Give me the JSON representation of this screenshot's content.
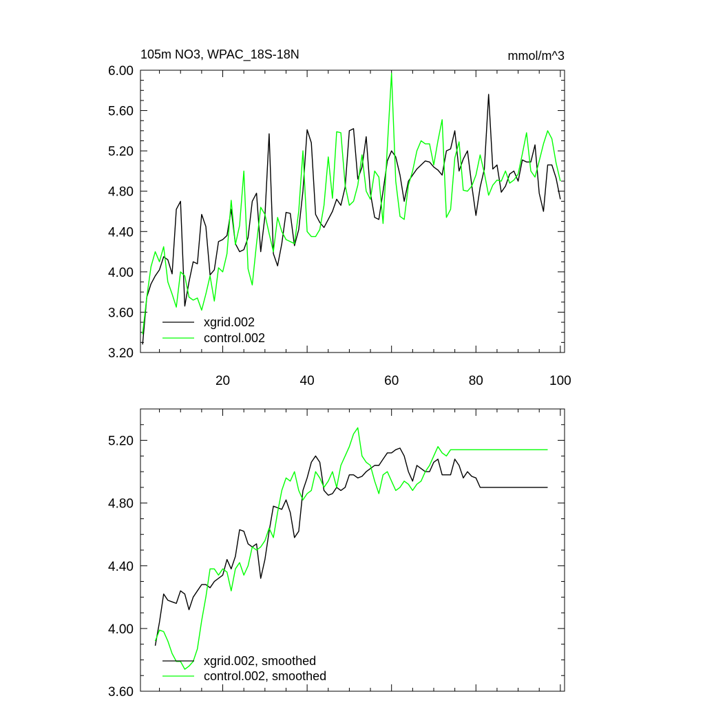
{
  "chart_data": [
    {
      "type": "line",
      "title": "105m NO3, WPAC_18S-18N",
      "units": "mmol/m^3",
      "xlabel": "",
      "ylabel": "",
      "xlim": [
        0.5,
        101
      ],
      "ylim": [
        3.2,
        6.0
      ],
      "xticks": [
        20,
        40,
        60,
        80,
        100
      ],
      "xtick_labels": [
        "20",
        "40",
        "60",
        "80",
        "100"
      ],
      "yticks": [
        3.2,
        3.6,
        4.0,
        4.4,
        4.8,
        5.2,
        5.6,
        6.0
      ],
      "ytick_labels": [
        "3.20",
        "3.60",
        "4.00",
        "4.40",
        "4.80",
        "5.20",
        "5.60",
        "6.00"
      ],
      "legend_position": "bottom-left",
      "series": [
        {
          "name": "xgrid.002",
          "color": "#000000",
          "x": [
            1,
            2,
            3,
            4,
            5,
            6,
            7,
            8,
            9,
            10,
            11,
            12,
            13,
            14,
            15,
            16,
            17,
            18,
            19,
            20,
            21,
            22,
            23,
            24,
            25,
            26,
            27,
            28,
            29,
            30,
            31,
            32,
            33,
            34,
            35,
            36,
            37,
            38,
            39,
            40,
            41,
            42,
            43,
            44,
            45,
            46,
            47,
            48,
            49,
            50,
            51,
            52,
            53,
            54,
            55,
            56,
            57,
            58,
            59,
            60,
            61,
            62,
            63,
            64,
            65,
            66,
            67,
            68,
            69,
            70,
            71,
            72,
            73,
            74,
            75,
            76,
            77,
            78,
            79,
            80,
            81,
            82,
            83,
            84,
            85,
            86,
            87,
            88,
            89,
            90,
            91,
            92,
            93,
            94,
            95,
            96,
            97,
            98,
            99,
            100
          ],
          "values": [
            3.28,
            3.75,
            3.88,
            3.96,
            4.02,
            4.15,
            4.12,
            3.98,
            4.62,
            4.7,
            3.66,
            3.9,
            4.1,
            4.08,
            4.57,
            4.45,
            3.97,
            4.02,
            4.3,
            4.32,
            4.36,
            4.62,
            4.28,
            4.2,
            4.22,
            4.34,
            4.7,
            4.78,
            4.2,
            4.55,
            5.37,
            4.18,
            4.06,
            4.28,
            4.59,
            4.58,
            4.26,
            4.42,
            4.8,
            5.41,
            5.28,
            4.57,
            4.49,
            4.44,
            4.52,
            4.6,
            4.72,
            4.66,
            4.84,
            5.4,
            5.42,
            4.92,
            5.04,
            5.34,
            4.78,
            4.54,
            4.52,
            4.8,
            5.1,
            5.2,
            5.14,
            4.96,
            4.7,
            4.9,
            4.96,
            5.02,
            5.06,
            5.1,
            5.09,
            5.04,
            5.01,
            4.96,
            5.2,
            5.22,
            5.4,
            5.0,
            5.12,
            5.2,
            4.86,
            4.56,
            4.84,
            5.02,
            5.76,
            5.02,
            5.06,
            4.79,
            4.85,
            4.97,
            5.0,
            4.9,
            5.11,
            5.09,
            5.09,
            5.26,
            4.78,
            4.6,
            5.06,
            5.06,
            4.93,
            4.72
          ]
        },
        {
          "name": "control.002",
          "color": "#00ff00",
          "x": [
            1,
            2,
            3,
            4,
            5,
            6,
            7,
            8,
            9,
            10,
            11,
            12,
            13,
            14,
            15,
            16,
            17,
            18,
            19,
            20,
            21,
            22,
            23,
            24,
            25,
            26,
            27,
            28,
            29,
            30,
            31,
            32,
            33,
            34,
            35,
            36,
            37,
            38,
            39,
            40,
            41,
            42,
            43,
            44,
            45,
            46,
            47,
            48,
            49,
            50,
            51,
            52,
            53,
            54,
            55,
            56,
            57,
            58,
            59,
            60,
            61,
            62,
            63,
            64,
            65,
            66,
            67,
            68,
            69,
            70,
            71,
            72,
            73,
            74,
            75,
            76,
            77,
            78,
            79,
            80,
            81,
            82,
            83,
            84,
            85,
            86,
            87,
            88,
            89,
            90,
            91,
            92,
            93,
            94,
            95,
            96,
            97,
            98,
            99,
            100
          ],
          "values": [
            3.38,
            3.75,
            4.05,
            4.2,
            4.1,
            4.25,
            3.9,
            3.78,
            3.65,
            4.0,
            3.96,
            3.75,
            3.72,
            3.74,
            3.62,
            3.78,
            3.96,
            3.71,
            4.04,
            4.0,
            4.18,
            4.71,
            4.27,
            4.46,
            5.0,
            4.03,
            3.87,
            4.28,
            4.64,
            4.57,
            4.38,
            4.2,
            4.54,
            4.4,
            4.32,
            4.3,
            4.28,
            4.6,
            5.2,
            4.4,
            4.35,
            4.35,
            4.42,
            4.66,
            5.14,
            4.73,
            5.39,
            5.38,
            4.86,
            4.66,
            4.7,
            4.86,
            5.16,
            4.8,
            4.72,
            5.0,
            4.94,
            4.48,
            5.24,
            5.97,
            4.9,
            4.55,
            4.52,
            4.86,
            5.0,
            5.2,
            5.3,
            5.27,
            5.27,
            5.06,
            5.3,
            5.51,
            4.54,
            4.62,
            5.13,
            5.29,
            4.81,
            4.8,
            4.85,
            4.96,
            5.16,
            4.98,
            4.76,
            4.86,
            4.91,
            4.9,
            5.0,
            4.88,
            4.91,
            4.97,
            5.17,
            5.38,
            5.0,
            4.94,
            5.1,
            5.27,
            5.4,
            5.32,
            5.08,
            4.9
          ]
        }
      ]
    },
    {
      "type": "line",
      "title": "",
      "xlabel": "",
      "ylabel": "",
      "xlim": [
        0.5,
        101
      ],
      "ylim": [
        3.6,
        5.4
      ],
      "xticks": [
        20,
        40,
        60,
        80,
        100
      ],
      "xtick_labels": [],
      "yticks": [
        3.6,
        4.0,
        4.4,
        4.8,
        5.2
      ],
      "ytick_labels": [
        "3.60",
        "4.00",
        "4.40",
        "4.80",
        "5.20"
      ],
      "legend_position": "bottom-left",
      "series": [
        {
          "name": "xgrid.002, smoothed",
          "color": "#000000",
          "x": [
            4,
            5,
            6,
            7,
            8,
            9,
            10,
            11,
            12,
            13,
            14,
            15,
            16,
            17,
            18,
            19,
            20,
            21,
            22,
            23,
            24,
            25,
            26,
            27,
            28,
            29,
            30,
            31,
            32,
            33,
            34,
            35,
            36,
            37,
            38,
            39,
            40,
            41,
            42,
            43,
            44,
            45,
            46,
            47,
            48,
            49,
            50,
            51,
            52,
            53,
            54,
            55,
            56,
            57,
            58,
            59,
            60,
            61,
            62,
            63,
            64,
            65,
            66,
            67,
            68,
            69,
            70,
            71,
            72,
            73,
            74,
            75,
            76,
            77,
            78,
            79,
            80,
            81,
            82,
            83,
            84,
            85,
            86,
            87,
            88,
            89,
            90,
            91,
            92,
            93,
            94,
            95,
            96,
            97
          ],
          "values": [
            3.89,
            4.04,
            4.22,
            4.18,
            4.17,
            4.16,
            4.24,
            4.22,
            4.12,
            4.2,
            4.24,
            4.28,
            4.28,
            4.26,
            4.3,
            4.32,
            4.34,
            4.44,
            4.38,
            4.46,
            4.63,
            4.62,
            4.54,
            4.52,
            4.54,
            4.32,
            4.44,
            4.62,
            4.78,
            4.77,
            4.76,
            4.82,
            4.74,
            4.58,
            4.62,
            4.88,
            4.96,
            5.06,
            5.1,
            5.06,
            4.88,
            4.85,
            4.86,
            4.9,
            4.88,
            4.9,
            4.98,
            4.98,
            4.96,
            4.97,
            5.0,
            5.02,
            5.04,
            5.04,
            5.08,
            5.12,
            5.12,
            5.14,
            5.15,
            5.1,
            5.0,
            4.94,
            5.04,
            5.02,
            5.0,
            5.0,
            5.06,
            5.08,
            4.98,
            4.98,
            4.98,
            5.08,
            5.04,
            4.96,
            5.0,
            4.97,
            4.96,
            4.9,
            4.9,
            4.9,
            4.9,
            4.9,
            4.9,
            4.9,
            4.9,
            4.9,
            4.9,
            4.9,
            4.9,
            4.9,
            4.9,
            4.9,
            4.9,
            4.9
          ],
          "plot_to": 97
        },
        {
          "name": "control.002, smoothed",
          "color": "#00ff00",
          "x": [
            4,
            5,
            6,
            7,
            8,
            9,
            10,
            11,
            12,
            13,
            14,
            15,
            16,
            17,
            18,
            19,
            20,
            21,
            22,
            23,
            24,
            25,
            26,
            27,
            28,
            29,
            30,
            31,
            32,
            33,
            34,
            35,
            36,
            37,
            38,
            39,
            40,
            41,
            42,
            43,
            44,
            45,
            46,
            47,
            48,
            49,
            50,
            51,
            52,
            53,
            54,
            55,
            56,
            57,
            58,
            59,
            60,
            61,
            62,
            63,
            64,
            65,
            66,
            67,
            68,
            69,
            70,
            71,
            72,
            73,
            74,
            75,
            76,
            77,
            78,
            79,
            80,
            81,
            82,
            83,
            84,
            85,
            86,
            87,
            88,
            89,
            90,
            91,
            92,
            93,
            94,
            95,
            96,
            97
          ],
          "values": [
            3.92,
            3.99,
            3.98,
            3.92,
            3.84,
            3.79,
            3.79,
            3.74,
            3.76,
            3.79,
            3.87,
            4.05,
            4.2,
            4.38,
            4.38,
            4.34,
            4.38,
            4.36,
            4.24,
            4.38,
            4.42,
            4.34,
            4.4,
            4.52,
            4.5,
            4.52,
            4.56,
            4.64,
            4.58,
            4.74,
            4.88,
            4.96,
            4.94,
            5.0,
            4.88,
            4.82,
            4.86,
            4.88,
            5.0,
            4.96,
            4.9,
            4.94,
            5.0,
            4.9,
            5.04,
            5.1,
            5.16,
            5.24,
            5.28,
            5.1,
            5.06,
            5.04,
            4.94,
            4.86,
            4.98,
            5.0,
            4.94,
            4.88,
            4.9,
            4.94,
            4.92,
            4.88,
            4.92,
            4.94,
            5.0,
            5.04,
            5.1,
            5.16,
            5.12,
            5.1,
            5.14,
            5.14,
            5.14,
            5.14,
            5.14,
            5.14,
            5.14,
            5.14,
            5.14,
            5.14,
            5.14,
            5.14,
            5.14,
            5.14,
            5.14,
            5.14,
            5.14,
            5.14,
            5.14,
            5.14,
            5.14,
            5.14,
            5.14,
            5.14
          ],
          "plot_to": 97
        }
      ]
    }
  ]
}
